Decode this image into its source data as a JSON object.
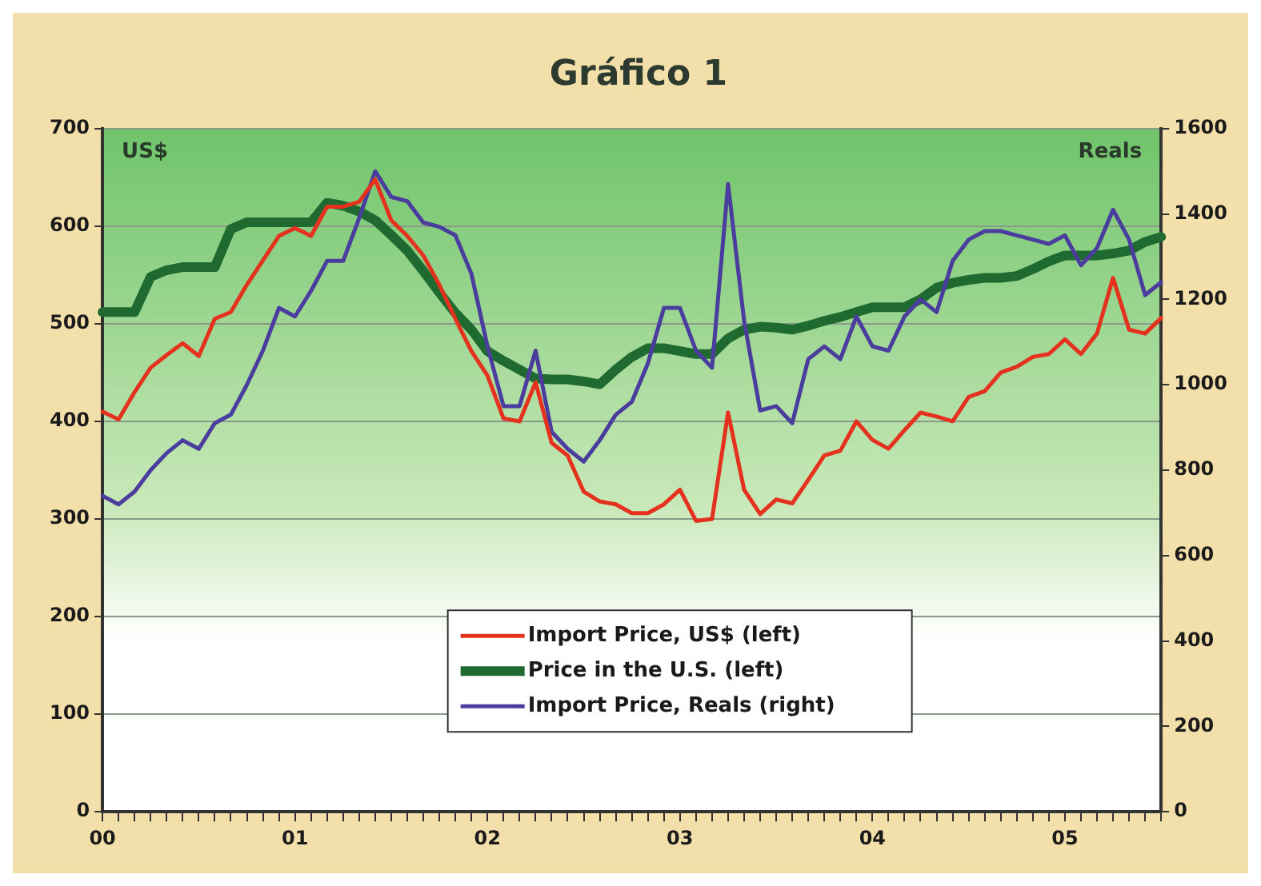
{
  "chart_data": {
    "type": "line",
    "title": "Gráfico 1",
    "ylabel": "US$",
    "y2label": "Reals",
    "categories": [
      "00",
      null,
      null,
      null,
      null,
      null,
      null,
      null,
      null,
      null,
      null,
      null,
      "01",
      null,
      null,
      null,
      null,
      null,
      null,
      null,
      null,
      null,
      null,
      null,
      "02",
      null,
      null,
      null,
      null,
      null,
      null,
      null,
      null,
      null,
      null,
      null,
      "03",
      null,
      null,
      null,
      null,
      null,
      null,
      null,
      null,
      null,
      null,
      null,
      "04",
      null,
      null,
      null,
      null,
      null,
      null,
      null,
      null,
      null,
      null,
      null,
      "05",
      null,
      null,
      null,
      null,
      null,
      null
    ],
    "series": [
      {
        "name": "Import Price, US$ (left)",
        "color": "#e5321f",
        "values": [
          410,
          402,
          430,
          455,
          468,
          480,
          467,
          505,
          512,
          540,
          565,
          590,
          598,
          590,
          620,
          620,
          625,
          648,
          606,
          590,
          570,
          540,
          505,
          472,
          447,
          403,
          400,
          440,
          378,
          365,
          328,
          318,
          315,
          306,
          306,
          315,
          330,
          298,
          300,
          409,
          330,
          305,
          320,
          316,
          340,
          365,
          370,
          400,
          381,
          372,
          391,
          409,
          405,
          400,
          425,
          431,
          450,
          456,
          466,
          469,
          484,
          469,
          490,
          547,
          494,
          490,
          506
        ]
      },
      {
        "name": "Price in the U.S. (left)",
        "color": "#1f6a30",
        "values": [
          512,
          512,
          512,
          548,
          555,
          558,
          558,
          558,
          597,
          604,
          604,
          604,
          604,
          604,
          624,
          621,
          615,
          606,
          591,
          575,
          554,
          532,
          511,
          494,
          472,
          462,
          453,
          444,
          443,
          443,
          441,
          438,
          453,
          466,
          475,
          475,
          472,
          469,
          469,
          485,
          494,
          497,
          496,
          494,
          498,
          503,
          507,
          512,
          517,
          517,
          517,
          525,
          537,
          542,
          545,
          547,
          547,
          549,
          556,
          564,
          570,
          570,
          570,
          572,
          575,
          584,
          589
        ]
      },
      {
        "name": "Import Price, Reals (right)",
        "color": "#4a3d9e",
        "axis": "y2",
        "values": [
          740,
          720,
          750,
          800,
          840,
          870,
          850,
          910,
          930,
          1000,
          1080,
          1180,
          1160,
          1220,
          1290,
          1290,
          1390,
          1500,
          1440,
          1430,
          1380,
          1370,
          1350,
          1260,
          1090,
          950,
          950,
          1080,
          890,
          850,
          820,
          870,
          930,
          960,
          1050,
          1180,
          1180,
          1080,
          1040,
          1470,
          1150,
          940,
          950,
          910,
          1060,
          1090,
          1060,
          1160,
          1090,
          1080,
          1160,
          1200,
          1170,
          1290,
          1340,
          1360,
          1360,
          1350,
          1340,
          1330,
          1350,
          1280,
          1320,
          1410,
          1340,
          1210,
          1240
        ]
      }
    ],
    "ylim": [
      0,
      700
    ],
    "yticks": [
      0,
      100,
      200,
      300,
      400,
      500,
      600,
      700
    ],
    "y2lim": [
      0,
      1600
    ],
    "y2ticks": [
      0,
      200,
      400,
      600,
      800,
      1000,
      1200,
      1400,
      1600
    ],
    "grid": "y",
    "legend": "bottom",
    "marker": "none",
    "line_style": "solid"
  }
}
